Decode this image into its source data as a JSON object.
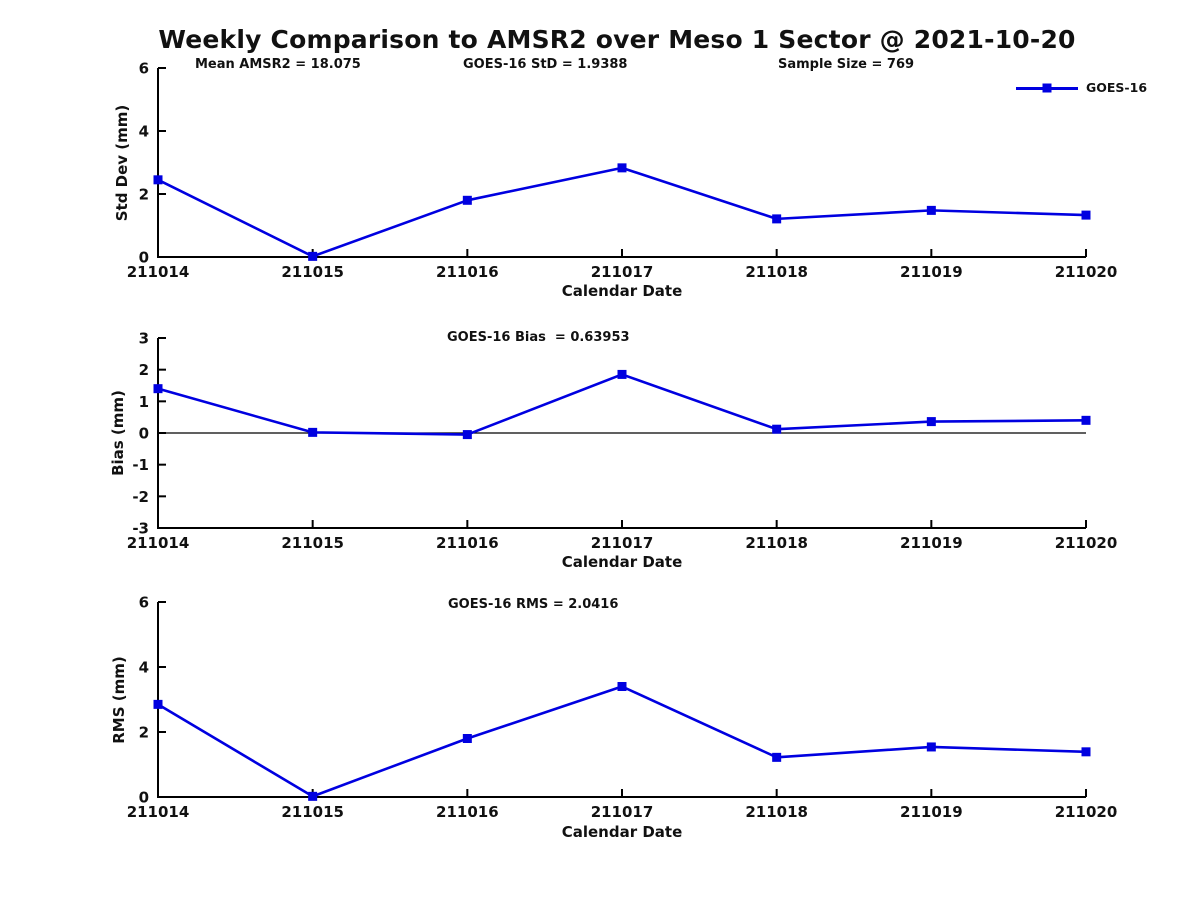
{
  "title": "Weekly Comparison to AMSR2 over Meso 1 Sector @ 2021-10-20",
  "colors": {
    "line": "#0000e0",
    "axis": "#000000",
    "text": "#111111"
  },
  "chart_data": [
    {
      "id": "std-dev",
      "type": "line",
      "xlabel": "Calendar Date",
      "ylabel": "Std Dev (mm)",
      "categories": [
        "211014",
        "211015",
        "211016",
        "211017",
        "211018",
        "211019",
        "211020"
      ],
      "series": [
        {
          "name": "GOES-16",
          "marker": "square",
          "values": [
            2.45,
            0.02,
            1.8,
            2.83,
            1.21,
            1.48,
            1.33
          ]
        }
      ],
      "ylim": [
        0,
        6
      ],
      "yticks": [
        0,
        2,
        4,
        6
      ],
      "grid": false,
      "legend_position": "upper-right",
      "annotations": [
        "Mean AMSR2 = 18.075",
        "GOES-16 StD = 1.9388",
        "Sample Size = 769"
      ]
    },
    {
      "id": "bias",
      "type": "line",
      "xlabel": "Calendar Date",
      "ylabel": "Bias (mm)",
      "categories": [
        "211014",
        "211015",
        "211016",
        "211017",
        "211018",
        "211019",
        "211020"
      ],
      "series": [
        {
          "name": "GOES-16",
          "marker": "square",
          "values": [
            1.4,
            0.02,
            -0.05,
            1.85,
            0.12,
            0.36,
            0.4
          ]
        }
      ],
      "ylim": [
        -3,
        3
      ],
      "yticks": [
        -3,
        -2,
        -1,
        0,
        1,
        2,
        3
      ],
      "zero_line": true,
      "grid": false,
      "annotation": "GOES-16 Bias  = 0.63953"
    },
    {
      "id": "rms",
      "type": "line",
      "xlabel": "Calendar Date",
      "ylabel": "RMS (mm)",
      "categories": [
        "211014",
        "211015",
        "211016",
        "211017",
        "211018",
        "211019",
        "211020"
      ],
      "series": [
        {
          "name": "GOES-16",
          "marker": "square",
          "values": [
            2.85,
            0.02,
            1.8,
            3.4,
            1.22,
            1.54,
            1.39
          ]
        }
      ],
      "ylim": [
        0,
        6
      ],
      "yticks": [
        0,
        2,
        4,
        6
      ],
      "grid": false,
      "annotation": "GOES-16 RMS = 2.0416"
    }
  ]
}
